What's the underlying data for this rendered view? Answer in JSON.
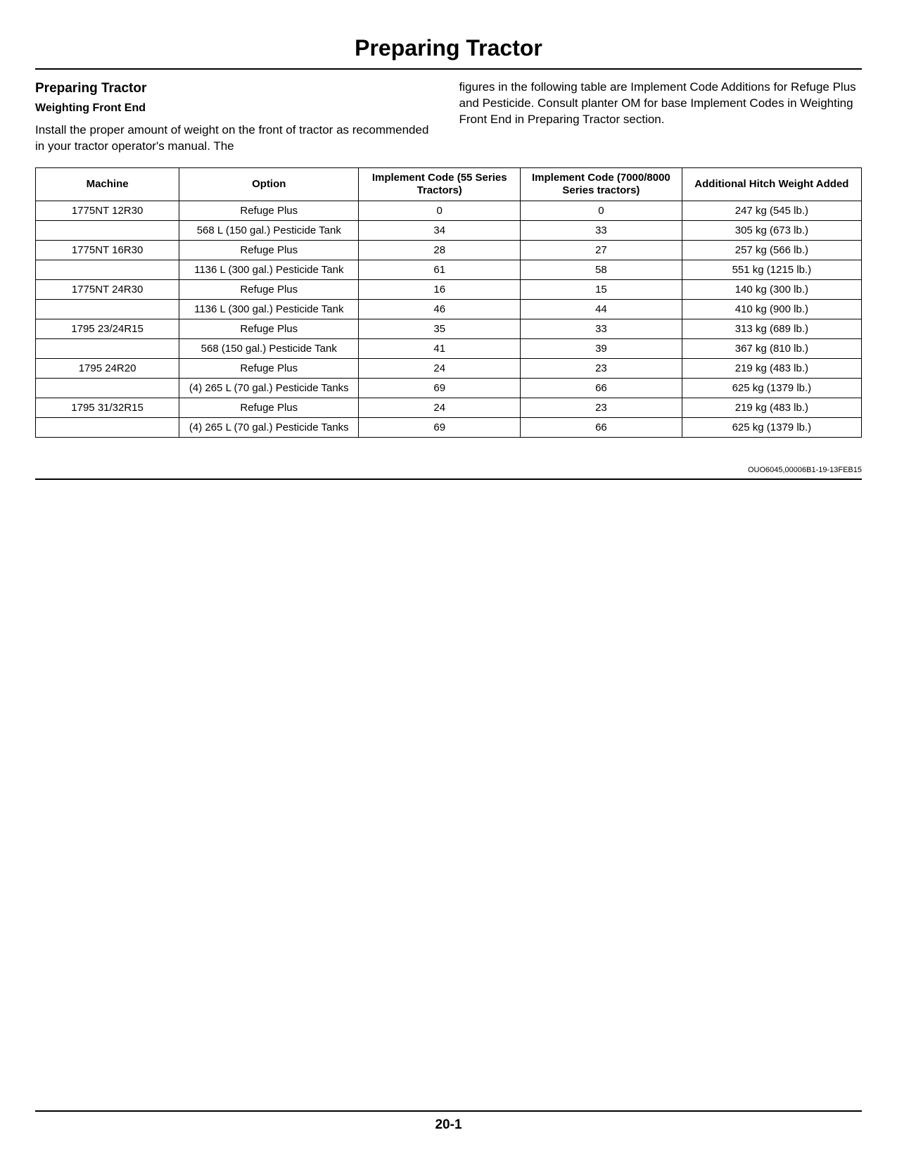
{
  "doc_title": "Preparing Tractor",
  "section_title": "Preparing Tractor",
  "subsection_title": "Weighting Front End",
  "left_paragraph": "Install the proper amount of weight on the front of tractor as recommended in your tractor operator's manual. The",
  "right_paragraph": "figures in the following table are Implement Code Additions for Refuge Plus and Pesticide. Consult planter OM for base Implement Codes in Weighting Front End in Preparing Tractor section.",
  "table": {
    "columns": [
      "Machine",
      "Option",
      "Implement Code (55 Series Tractors)",
      "Implement Code (7000/8000 Series tractors)",
      "Additional Hitch Weight Added"
    ],
    "col_widths": [
      "160px",
      "200px",
      "180px",
      "180px",
      "200px"
    ],
    "rows": [
      [
        "1775NT 12R30",
        "Refuge Plus",
        "0",
        "0",
        "247 kg (545 lb.)"
      ],
      [
        "",
        "568 L (150 gal.) Pesticide Tank",
        "34",
        "33",
        "305 kg (673 lb.)"
      ],
      [
        "1775NT 16R30",
        "Refuge Plus",
        "28",
        "27",
        "257 kg (566 lb.)"
      ],
      [
        "",
        "1136 L (300 gal.) Pesticide Tank",
        "61",
        "58",
        "551 kg (1215 lb.)"
      ],
      [
        "1775NT 24R30",
        "Refuge Plus",
        "16",
        "15",
        "140 kg (300 lb.)"
      ],
      [
        "",
        "1136 L (300 gal.) Pesticide Tank",
        "46",
        "44",
        "410 kg (900 lb.)"
      ],
      [
        "1795 23/24R15",
        "Refuge Plus",
        "35",
        "33",
        "313 kg (689 lb.)"
      ],
      [
        "",
        "568 (150 gal.) Pesticide Tank",
        "41",
        "39",
        "367 kg (810 lb.)"
      ],
      [
        "1795 24R20",
        "Refuge Plus",
        "24",
        "23",
        "219 kg (483 lb.)"
      ],
      [
        "",
        "(4) 265 L (70 gal.) Pesticide Tanks",
        "69",
        "66",
        "625 kg (1379 lb.)"
      ],
      [
        "1795 31/32R15",
        "Refuge Plus",
        "24",
        "23",
        "219 kg (483 lb.)"
      ],
      [
        "",
        "(4) 265 L (70 gal.) Pesticide Tanks",
        "69",
        "66",
        "625 kg (1379 lb.)"
      ]
    ]
  },
  "doc_code": "OUO6045,00006B1-19-13FEB15",
  "page_number": "20-1"
}
